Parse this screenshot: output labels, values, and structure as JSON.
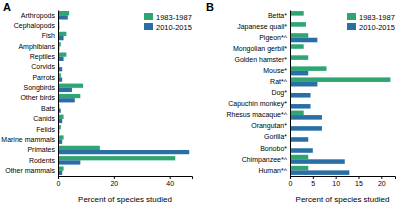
{
  "chart_data": [
    {
      "type": "bar",
      "orientation": "horizontal",
      "title": "A",
      "xlabel": "Percent of species studied",
      "categories": [
        "Arthropods",
        "Cephalopods",
        "Fish",
        "Amphibians",
        "Reptiles",
        "Corvids",
        "Parrots",
        "Songbirds",
        "Other birds",
        "Bats",
        "Canids",
        "Felids",
        "Marine mammals",
        "Primates",
        "Rodents",
        "Other mammals"
      ],
      "series": [
        {
          "name": "1983-1987",
          "color": "#2fa572",
          "values": [
            4,
            0.5,
            3,
            1,
            3,
            0.5,
            1,
            9,
            8,
            0.5,
            2,
            1,
            2,
            15,
            42,
            2
          ]
        },
        {
          "name": "2010-2015",
          "color": "#2a6ea6",
          "values": [
            3.5,
            0.5,
            2,
            0.5,
            2,
            1.5,
            1.5,
            5,
            6,
            1,
            1.5,
            0.5,
            1.5,
            47,
            8,
            1.5
          ]
        }
      ],
      "xlim": [
        0,
        48
      ],
      "xticks": [
        0,
        20,
        40
      ],
      "legend": "upper right"
    },
    {
      "type": "bar",
      "orientation": "horizontal",
      "title": "B",
      "xlabel": "Percent of species studied",
      "categories": [
        "Betta*",
        "Japanese quail*",
        "Pigeon*^",
        "Mongolian gerbil*",
        "Golden hamster*",
        "Mouse*",
        "Rat*^",
        "Dog*",
        "Capuchin monkey*",
        "Rhesus macaque*^",
        "Orangutan*",
        "Gorilla*",
        "Bonobo*",
        "Chimpanzee*^",
        "Human*^"
      ],
      "series": [
        {
          "name": "1983-1987",
          "color": "#2fa572",
          "values": [
            3,
            3.5,
            4,
            3,
            4,
            8,
            22,
            0,
            0,
            3,
            0,
            0,
            0,
            4,
            4
          ]
        },
        {
          "name": "2010-2015",
          "color": "#2a6ea6",
          "values": [
            0,
            0,
            6,
            0,
            0,
            4,
            6,
            4.5,
            4.5,
            7,
            7,
            4,
            5,
            12,
            13
          ]
        }
      ],
      "xlim": [
        0,
        23
      ],
      "xticks": [
        0,
        5,
        10,
        15,
        20
      ],
      "legend": "upper right"
    }
  ]
}
